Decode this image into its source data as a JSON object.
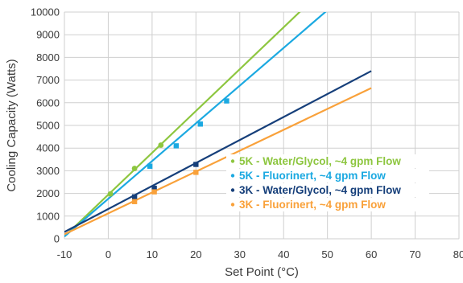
{
  "chart_data": {
    "type": "line",
    "title": "",
    "xlabel": "Set Point (°C)",
    "ylabel": "Cooling Capacity (Watts)",
    "xlim": [
      -10,
      80
    ],
    "ylim": [
      0,
      10000
    ],
    "xticks": [
      -10,
      0,
      10,
      20,
      30,
      40,
      50,
      60,
      70,
      80
    ],
    "yticks": [
      0,
      1000,
      2000,
      3000,
      4000,
      5000,
      6000,
      7000,
      8000,
      9000,
      10000
    ],
    "grid": true,
    "legend_position": "center-right",
    "series": [
      {
        "name": "5K - Water/Glycol, ~4 gpm Flow",
        "color": "#8dc63f",
        "marker": "circle",
        "line": [
          [
            -10,
            100
          ],
          [
            45,
            10250
          ]
        ],
        "points": [
          [
            0.5,
            1980
          ],
          [
            6,
            3100
          ],
          [
            12,
            4130
          ]
        ]
      },
      {
        "name": "5K - Fluorinert, ~4 gpm Flow",
        "color": "#1ba9e1",
        "marker": "square",
        "line": [
          [
            -10,
            100
          ],
          [
            51,
            10250
          ]
        ],
        "points": [
          [
            9.5,
            3200
          ],
          [
            15.5,
            4100
          ],
          [
            21,
            5060
          ],
          [
            27,
            6080
          ]
        ]
      },
      {
        "name": "3K - Water/Glycol, ~4 gpm Flow",
        "color": "#163f7a",
        "marker": "square",
        "line": [
          [
            -10,
            300
          ],
          [
            60,
            7400
          ]
        ],
        "points": [
          [
            6,
            1850
          ],
          [
            10.5,
            2230
          ],
          [
            20,
            3280
          ]
        ]
      },
      {
        "name": "3K - Fluorinert, ~4 gpm Flow",
        "color": "#f9a13a",
        "marker": "square",
        "line": [
          [
            -10,
            200
          ],
          [
            60,
            6650
          ]
        ],
        "points": [
          [
            6,
            1640
          ],
          [
            10.5,
            2070
          ],
          [
            20,
            2930
          ]
        ]
      }
    ]
  }
}
